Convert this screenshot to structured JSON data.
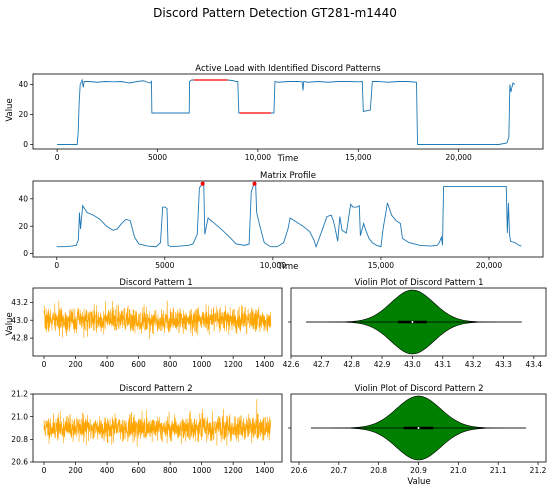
{
  "figure": {
    "suptitle": "Discord Pattern Detection GT281-m1440"
  },
  "colors": {
    "line": "#1f77b4",
    "discord": "#ff0000",
    "orange": "#ffa500",
    "violin": "#008000",
    "marker": "#ff0000"
  },
  "chart_data": [
    {
      "id": "active",
      "type": "line",
      "title": "Active Load with Identified Discord Patterns",
      "xlabel": "Time",
      "ylabel": "Value",
      "xlim": [
        -1200,
        24200
      ],
      "ylim": [
        -3,
        47
      ],
      "xticks": [
        0,
        5000,
        10000,
        15000,
        20000
      ],
      "xtick_labels": [
        "0",
        "5000",
        "10,000",
        "15,000",
        "20,000"
      ],
      "yticks": [
        0,
        20,
        40
      ],
      "ytick_labels": [
        "0",
        "20",
        "40"
      ],
      "series": [
        {
          "points": [
            [
              0,
              0
            ],
            [
              1000,
              0
            ],
            [
              1050,
              8
            ],
            [
              1100,
              28
            ],
            [
              1150,
              40
            ],
            [
              1250,
              43
            ],
            [
              1300,
              38
            ],
            [
              1350,
              42
            ],
            [
              1600,
              42
            ],
            [
              2000,
              41.5
            ],
            [
              2400,
              42
            ],
            [
              2800,
              41.8
            ],
            [
              3200,
              42
            ],
            [
              3600,
              41
            ],
            [
              4000,
              42
            ],
            [
              4300,
              42.5
            ],
            [
              4500,
              41.5
            ],
            [
              4650,
              41
            ],
            [
              4700,
              42
            ],
            [
              4720,
              21
            ],
            [
              5500,
              21
            ],
            [
              6000,
              21
            ],
            [
              6500,
              21
            ],
            [
              6580,
              21
            ],
            [
              6600,
              42
            ],
            [
              6700,
              43
            ],
            [
              7000,
              43
            ],
            [
              7500,
              43
            ],
            [
              8000,
              43
            ],
            [
              8500,
              43
            ],
            [
              8800,
              42.5
            ],
            [
              8900,
              42
            ],
            [
              9000,
              42
            ],
            [
              9050,
              21
            ],
            [
              9500,
              21
            ],
            [
              10000,
              21
            ],
            [
              10500,
              21
            ],
            [
              10800,
              21
            ],
            [
              10850,
              42
            ],
            [
              11000,
              41.5
            ],
            [
              11500,
              42
            ],
            [
              12000,
              42
            ],
            [
              12200,
              41.8
            ],
            [
              12250,
              36
            ],
            [
              12280,
              42
            ],
            [
              12500,
              41.5
            ],
            [
              13000,
              42
            ],
            [
              13500,
              41.5
            ],
            [
              14000,
              42
            ],
            [
              14500,
              42
            ],
            [
              15000,
              41.8
            ],
            [
              15200,
              42
            ],
            [
              15250,
              22
            ],
            [
              15600,
              23
            ],
            [
              15700,
              42
            ],
            [
              16000,
              42
            ],
            [
              16500,
              41.5
            ],
            [
              17000,
              42
            ],
            [
              17500,
              42
            ],
            [
              17900,
              41.5
            ],
            [
              17950,
              0
            ],
            [
              18500,
              0
            ],
            [
              19000,
              0
            ],
            [
              20000,
              0
            ],
            [
              21000,
              0
            ],
            [
              22000,
              0
            ],
            [
              22400,
              1
            ],
            [
              22500,
              5
            ],
            [
              22550,
              40
            ],
            [
              22600,
              35
            ],
            [
              22700,
              41
            ],
            [
              22800,
              40
            ]
          ]
        }
      ],
      "discords": [
        {
          "points": [
            [
              6800,
              43
            ],
            [
              8500,
              43
            ]
          ]
        },
        {
          "points": [
            [
              9100,
              21
            ],
            [
              10650,
              21
            ]
          ]
        }
      ]
    },
    {
      "id": "mp",
      "type": "line",
      "title": "Matrix Profile",
      "xlabel": "Time",
      "ylabel": "",
      "xlim": [
        -1100,
        22500
      ],
      "ylim": [
        -2.5,
        53
      ],
      "xticks": [
        0,
        5000,
        10000,
        15000,
        20000
      ],
      "xtick_labels": [
        "0",
        "5000",
        "10,000",
        "15,000",
        "20,000"
      ],
      "yticks": [
        0,
        20,
        40
      ],
      "ytick_labels": [
        "0",
        "20",
        "40"
      ],
      "series": [
        {
          "points": [
            [
              0,
              5
            ],
            [
              400,
              5
            ],
            [
              700,
              5.5
            ],
            [
              900,
              6
            ],
            [
              1000,
              10
            ],
            [
              1050,
              30
            ],
            [
              1100,
              18
            ],
            [
              1200,
              35
            ],
            [
              1400,
              30
            ],
            [
              1700,
              28
            ],
            [
              2000,
              25
            ],
            [
              2300,
              20
            ],
            [
              2600,
              17
            ],
            [
              2800,
              18
            ],
            [
              3000,
              22
            ],
            [
              3200,
              25
            ],
            [
              3400,
              24
            ],
            [
              3500,
              18
            ],
            [
              3600,
              12
            ],
            [
              3800,
              7
            ],
            [
              4200,
              5.5
            ],
            [
              4600,
              5
            ],
            [
              4800,
              8
            ],
            [
              4900,
              34
            ],
            [
              5000,
              34
            ],
            [
              5100,
              33
            ],
            [
              5150,
              6
            ],
            [
              5300,
              5
            ],
            [
              5700,
              5.5
            ],
            [
              6100,
              6
            ],
            [
              6300,
              7
            ],
            [
              6500,
              14
            ],
            [
              6600,
              48
            ],
            [
              6700,
              50
            ],
            [
              6800,
              52
            ],
            [
              6850,
              14
            ],
            [
              7000,
              26
            ],
            [
              7300,
              22
            ],
            [
              7600,
              18
            ],
            [
              8000,
              12
            ],
            [
              8300,
              7
            ],
            [
              8700,
              6
            ],
            [
              8900,
              7
            ],
            [
              9000,
              45
            ],
            [
              9100,
              50
            ],
            [
              9200,
              52
            ],
            [
              9250,
              30
            ],
            [
              9400,
              20
            ],
            [
              9600,
              8
            ],
            [
              9900,
              5
            ],
            [
              10200,
              5
            ],
            [
              10500,
              8
            ],
            [
              10700,
              18
            ],
            [
              10800,
              26
            ],
            [
              11000,
              24
            ],
            [
              11400,
              20
            ],
            [
              11700,
              16
            ],
            [
              11900,
              10
            ],
            [
              12000,
              5
            ],
            [
              12300,
              18
            ],
            [
              12500,
              27
            ],
            [
              12700,
              28
            ],
            [
              12800,
              24
            ],
            [
              12900,
              17
            ],
            [
              13000,
              9
            ],
            [
              13100,
              27
            ],
            [
              13200,
              17
            ],
            [
              13400,
              15
            ],
            [
              13600,
              36
            ],
            [
              13700,
              34
            ],
            [
              13900,
              34
            ],
            [
              14000,
              35
            ],
            [
              14050,
              13
            ],
            [
              14200,
              22
            ],
            [
              14300,
              17
            ],
            [
              14450,
              11
            ],
            [
              14600,
              8
            ],
            [
              14800,
              6
            ],
            [
              15000,
              5
            ],
            [
              15100,
              18
            ],
            [
              15300,
              37
            ],
            [
              15500,
              28
            ],
            [
              15700,
              24
            ],
            [
              15900,
              22
            ],
            [
              16000,
              11
            ],
            [
              16300,
              8
            ],
            [
              16800,
              6
            ],
            [
              17300,
              5.5
            ],
            [
              17600,
              6
            ],
            [
              17700,
              8
            ],
            [
              17800,
              12
            ],
            [
              17850,
              6
            ],
            [
              17900,
              49
            ],
            [
              18500,
              49
            ],
            [
              19500,
              49
            ],
            [
              20500,
              49
            ],
            [
              20800,
              49
            ],
            [
              20850,
              15
            ],
            [
              20900,
              37
            ],
            [
              20950,
              14
            ],
            [
              21000,
              9
            ],
            [
              21200,
              8
            ],
            [
              21400,
              6
            ],
            [
              21500,
              5.5
            ]
          ]
        }
      ],
      "markers": [
        [
          6750,
          51
        ],
        [
          9150,
          51
        ]
      ]
    },
    {
      "id": "dp1",
      "type": "line",
      "title": "Discord Pattern 1",
      "xlabel": "",
      "ylabel": "Value",
      "xlim": [
        -70,
        1510
      ],
      "ylim": [
        42.6,
        43.36
      ],
      "xticks": [
        0,
        200,
        400,
        600,
        800,
        1000,
        1200,
        1400
      ],
      "xtick_labels": [
        "0",
        "200",
        "400",
        "600",
        "800",
        "1000",
        "1200",
        "1400"
      ],
      "yticks": [
        42.8,
        43.0,
        43.2
      ],
      "ytick_labels": [
        "42.8",
        "43.0",
        "43.2"
      ],
      "noise": {
        "n": 1440,
        "mean": 43.0,
        "sd": 0.07,
        "seed": 7
      }
    },
    {
      "id": "v1",
      "type": "violin",
      "title": "Violin Plot of Discord Pattern 1",
      "xlabel": "",
      "ylabel": "",
      "xlim": [
        42.6,
        43.44
      ],
      "xticks": [
        42.6,
        42.7,
        42.8,
        42.9,
        43.0,
        43.1,
        43.2,
        43.3,
        43.4
      ],
      "xtick_labels": [
        "42.6",
        "42.7",
        "42.8",
        "42.9",
        "43.0",
        "43.1",
        "43.2",
        "43.3",
        "43.4"
      ],
      "range": [
        42.65,
        43.36
      ],
      "mean": 43.0,
      "sd": 0.07
    },
    {
      "id": "dp2",
      "type": "line",
      "title": "Discord Pattern 2",
      "xlabel": "",
      "ylabel": "",
      "xlim": [
        -70,
        1510
      ],
      "ylim": [
        20.6,
        21.2
      ],
      "xticks": [
        0,
        200,
        400,
        600,
        800,
        1000,
        1200,
        1400
      ],
      "xtick_labels": [
        "0",
        "200",
        "400",
        "600",
        "800",
        "1000",
        "1200",
        "1400"
      ],
      "yticks": [
        20.6,
        20.8,
        21.0,
        21.2
      ],
      "ytick_labels": [
        "20.6",
        "20.8",
        "21.0",
        "21.2"
      ],
      "noise": {
        "n": 1440,
        "mean": 20.9,
        "sd": 0.055,
        "seed": 11
      }
    },
    {
      "id": "v2",
      "type": "violin",
      "title": "Violin Plot of Discord Pattern 2",
      "xlabel": "Value",
      "ylabel": "",
      "xlim": [
        20.58,
        21.22
      ],
      "xticks": [
        20.6,
        20.7,
        20.8,
        20.9,
        21.0,
        21.1,
        21.2
      ],
      "xtick_labels": [
        "20.6",
        "20.7",
        "20.8",
        "20.9",
        "21.0",
        "21.1",
        "21.2"
      ],
      "range": [
        20.63,
        21.17
      ],
      "mean": 20.9,
      "sd": 0.055
    }
  ]
}
